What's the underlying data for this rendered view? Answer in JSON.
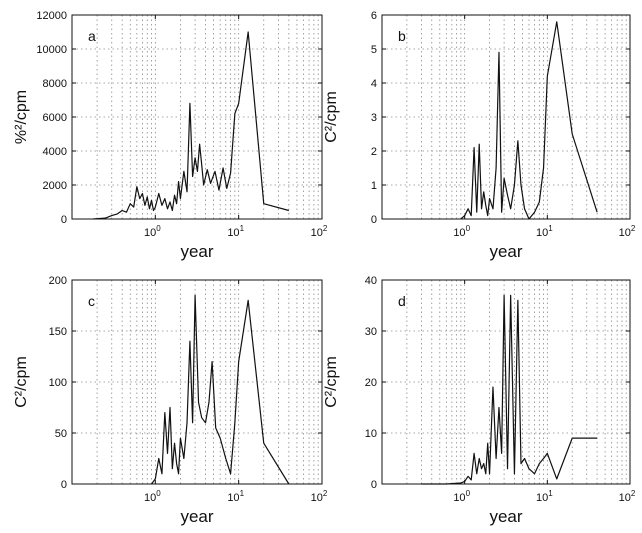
{
  "chart_data": [
    {
      "type": "line",
      "panel_label": "a",
      "xlabel": "year",
      "ylabel": "%²/cpm",
      "xscale": "log",
      "xlim": [
        0.1,
        100
      ],
      "xticks": [
        1,
        10,
        100
      ],
      "xtick_labels": [
        {
          "base": "10",
          "exp": "0"
        },
        {
          "base": "10",
          "exp": "1"
        },
        {
          "base": "10",
          "exp": "2"
        }
      ],
      "ylim": [
        0,
        12000
      ],
      "yticks": [
        0,
        2000,
        4000,
        6000,
        8000,
        10000,
        12000
      ],
      "ytick_labels": [
        "0",
        "2000",
        "4000",
        "6000",
        "8000",
        "10000",
        "12000"
      ],
      "grid": true,
      "series": [
        {
          "x": [
            0.18,
            0.25,
            0.3,
            0.35,
            0.4,
            0.45,
            0.5,
            0.55,
            0.6,
            0.65,
            0.7,
            0.75,
            0.8,
            0.85,
            0.9,
            0.95,
            1.0,
            1.1,
            1.2,
            1.3,
            1.4,
            1.5,
            1.6,
            1.7,
            1.8,
            1.9,
            2.0,
            2.2,
            2.4,
            2.6,
            2.8,
            3.0,
            3.2,
            3.4,
            3.6,
            3.8,
            4.2,
            4.6,
            5.2,
            5.8,
            6.5,
            7.2,
            8.0,
            9.0,
            10.0,
            13.0,
            20.0,
            40.0
          ],
          "y": [
            0,
            50,
            200,
            300,
            500,
            400,
            900,
            700,
            1900,
            1200,
            1500,
            800,
            1300,
            600,
            1100,
            500,
            700,
            1500,
            800,
            1200,
            600,
            1000,
            500,
            1400,
            900,
            2200,
            1200,
            2800,
            1600,
            6800,
            2500,
            3600,
            2800,
            4400,
            3200,
            2000,
            2900,
            2100,
            2800,
            1700,
            3000,
            1800,
            2700,
            6200,
            6800,
            11000,
            900,
            500
          ]
        }
      ]
    },
    {
      "type": "line",
      "panel_label": "b",
      "xlabel": "year",
      "ylabel": "C²/cpm",
      "xscale": "log",
      "xlim": [
        0.1,
        100
      ],
      "xticks": [
        1,
        10,
        100
      ],
      "xtick_labels": [
        {
          "base": "10",
          "exp": "0"
        },
        {
          "base": "10",
          "exp": "1"
        },
        {
          "base": "10",
          "exp": "2"
        }
      ],
      "ylim": [
        0,
        6
      ],
      "yticks": [
        0,
        1,
        2,
        3,
        4,
        5,
        6
      ],
      "ytick_labels": [
        "0",
        "1",
        "2",
        "3",
        "4",
        "5",
        "6"
      ],
      "grid": true,
      "series": [
        {
          "x": [
            0.9,
            1.0,
            1.1,
            1.2,
            1.3,
            1.4,
            1.5,
            1.6,
            1.7,
            1.8,
            1.9,
            2.0,
            2.2,
            2.4,
            2.6,
            2.8,
            3.0,
            3.3,
            3.6,
            4.0,
            4.4,
            4.8,
            5.3,
            6.0,
            7.0,
            8.0,
            9.0,
            10.0,
            13.0,
            20.0,
            40.0
          ],
          "y": [
            0,
            0.1,
            0.3,
            0.1,
            2.1,
            0.2,
            2.2,
            0.3,
            0.8,
            0.4,
            0.1,
            0.6,
            0.3,
            1.5,
            4.9,
            0.2,
            1.2,
            0.7,
            0.3,
            1.0,
            2.3,
            1.0,
            0.3,
            0.0,
            0.2,
            0.5,
            1.5,
            4.2,
            5.8,
            2.5,
            0.2
          ]
        }
      ]
    },
    {
      "type": "line",
      "panel_label": "c",
      "xlabel": "year",
      "ylabel": "C²/cpm",
      "xscale": "log",
      "xlim": [
        0.1,
        100
      ],
      "xticks": [
        1,
        10,
        100
      ],
      "xtick_labels": [
        {
          "base": "10",
          "exp": "0"
        },
        {
          "base": "10",
          "exp": "1"
        },
        {
          "base": "10",
          "exp": "2"
        }
      ],
      "ylim": [
        0,
        200
      ],
      "yticks": [
        0,
        50,
        100,
        150,
        200
      ],
      "ytick_labels": [
        "0",
        "50",
        "100",
        "150",
        "200"
      ],
      "grid": true,
      "series": [
        {
          "x": [
            0.9,
            1.0,
            1.1,
            1.2,
            1.3,
            1.4,
            1.5,
            1.6,
            1.7,
            1.8,
            1.9,
            2.0,
            2.2,
            2.4,
            2.6,
            2.8,
            3.0,
            3.3,
            3.6,
            4.0,
            4.4,
            4.8,
            5.3,
            6.0,
            7.0,
            8.0,
            9.0,
            10.0,
            13.0,
            20.0,
            40.0
          ],
          "y": [
            0,
            5,
            25,
            10,
            70,
            30,
            75,
            15,
            40,
            20,
            10,
            45,
            25,
            60,
            140,
            60,
            185,
            80,
            65,
            60,
            80,
            120,
            55,
            45,
            25,
            10,
            60,
            120,
            180,
            40,
            0
          ]
        }
      ]
    },
    {
      "type": "line",
      "panel_label": "d",
      "xlabel": "year",
      "ylabel": "C²/cpm",
      "xscale": "log",
      "xlim": [
        0.1,
        100
      ],
      "xticks": [
        1,
        10,
        100
      ],
      "xtick_labels": [
        {
          "base": "10",
          "exp": "0"
        },
        {
          "base": "10",
          "exp": "1"
        },
        {
          "base": "10",
          "exp": "2"
        }
      ],
      "ylim": [
        0,
        40
      ],
      "yticks": [
        0,
        10,
        20,
        30,
        40
      ],
      "ytick_labels": [
        "0",
        "10",
        "20",
        "30",
        "40"
      ],
      "grid": true,
      "series": [
        {
          "x": [
            0.3,
            0.6,
            0.9,
            1.0,
            1.1,
            1.2,
            1.3,
            1.4,
            1.5,
            1.6,
            1.7,
            1.8,
            1.9,
            2.0,
            2.2,
            2.4,
            2.6,
            2.8,
            3.0,
            3.3,
            3.6,
            4.0,
            4.4,
            4.8,
            5.3,
            6.0,
            7.0,
            8.0,
            9.0,
            10.0,
            13.0,
            20.0,
            40.0
          ],
          "y": [
            0,
            0,
            0.2,
            0.5,
            1.5,
            0.8,
            6,
            2,
            5,
            3,
            4,
            2,
            8,
            2,
            19,
            5,
            15,
            6,
            37,
            3,
            37,
            2,
            36,
            4,
            5,
            3,
            2,
            4,
            5,
            6,
            1,
            9,
            9
          ]
        }
      ]
    }
  ]
}
